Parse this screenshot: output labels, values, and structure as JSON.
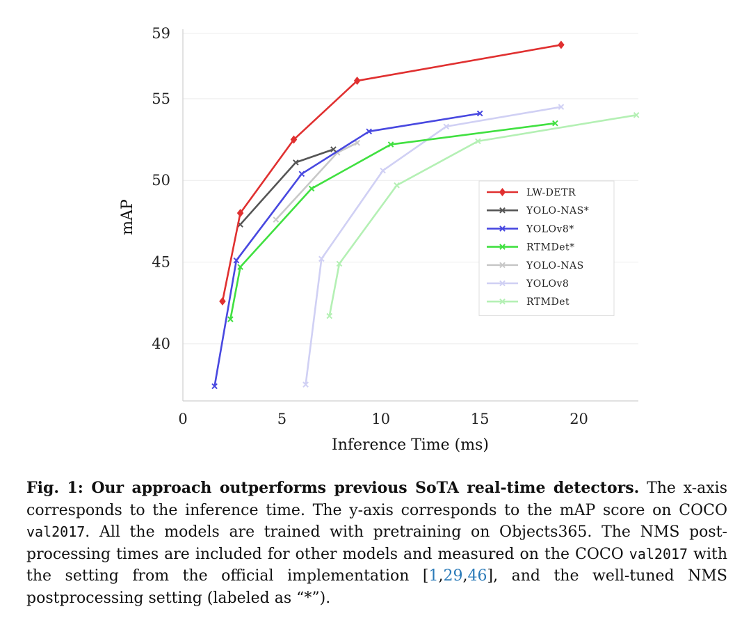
{
  "chart_data": {
    "type": "line",
    "title": "",
    "xlabel": "Inference Time (ms)",
    "ylabel": "mAP",
    "xlim": [
      0,
      23
    ],
    "ylim": [
      36.5,
      59
    ],
    "x_ticks": [
      0,
      5,
      10,
      15,
      20
    ],
    "y_ticks": [
      40,
      45,
      50,
      55,
      59
    ],
    "grid": "horizontal",
    "legend_position": "right",
    "series": [
      {
        "name": "LW-DETR",
        "color": "#e03030",
        "marker": "diamond",
        "x": [
          2.0,
          2.9,
          5.6,
          8.8,
          19.1
        ],
        "y": [
          42.6,
          48.0,
          52.5,
          56.1,
          58.3
        ]
      },
      {
        "name": "YOLO-NAS*",
        "color": "#555555",
        "marker": "x",
        "x": [
          2.9,
          5.7,
          7.6
        ],
        "y": [
          47.3,
          51.1,
          51.9
        ]
      },
      {
        "name": "YOLOv8*",
        "color": "#4848e0",
        "marker": "x",
        "x": [
          1.6,
          2.7,
          6.0,
          9.4,
          15.0
        ],
        "y": [
          37.4,
          45.1,
          50.4,
          53.0,
          54.1
        ]
      },
      {
        "name": "RTMDet*",
        "color": "#40e040",
        "marker": "x",
        "x": [
          2.4,
          2.9,
          6.5,
          10.5,
          18.8
        ],
        "y": [
          41.5,
          44.7,
          49.5,
          52.2,
          53.5
        ]
      },
      {
        "name": "YOLO-NAS",
        "color": "#c8c8c8",
        "marker": "x",
        "x": [
          4.7,
          7.8,
          8.8
        ],
        "y": [
          47.6,
          51.7,
          52.3
        ]
      },
      {
        "name": "YOLOv8",
        "color": "#d0d0f4",
        "marker": "x",
        "x": [
          6.2,
          7.0,
          10.1,
          13.3,
          19.1
        ],
        "y": [
          37.5,
          45.2,
          50.6,
          53.3,
          54.5
        ]
      },
      {
        "name": "RTMDet",
        "color": "#b4f0b4",
        "marker": "x",
        "x": [
          7.4,
          7.9,
          10.8,
          14.9,
          22.9
        ],
        "y": [
          41.7,
          44.9,
          49.7,
          52.4,
          54.0
        ]
      }
    ]
  },
  "caption": {
    "fig_label": "Fig. 1: Our approach outperforms previous SoTA real-time detectors.",
    "text_1": " The x-axis corresponds to the inference time. The y-axis corresponds to the mAP score on COCO ",
    "code_1": "val2017",
    "text_2": ". All the models are trained with pretraining on Objects365. The NMS post-processing times are included for other models and measured on the COCO ",
    "code_2": "val2017",
    "text_3": " with the setting from the official implementation [",
    "ref_1": "1",
    "sep_1": ",",
    "ref_2": "29",
    "sep_2": ",",
    "ref_3": "46",
    "text_4": "], and the well-tuned NMS postprocessing setting (labeled as “*”)."
  }
}
